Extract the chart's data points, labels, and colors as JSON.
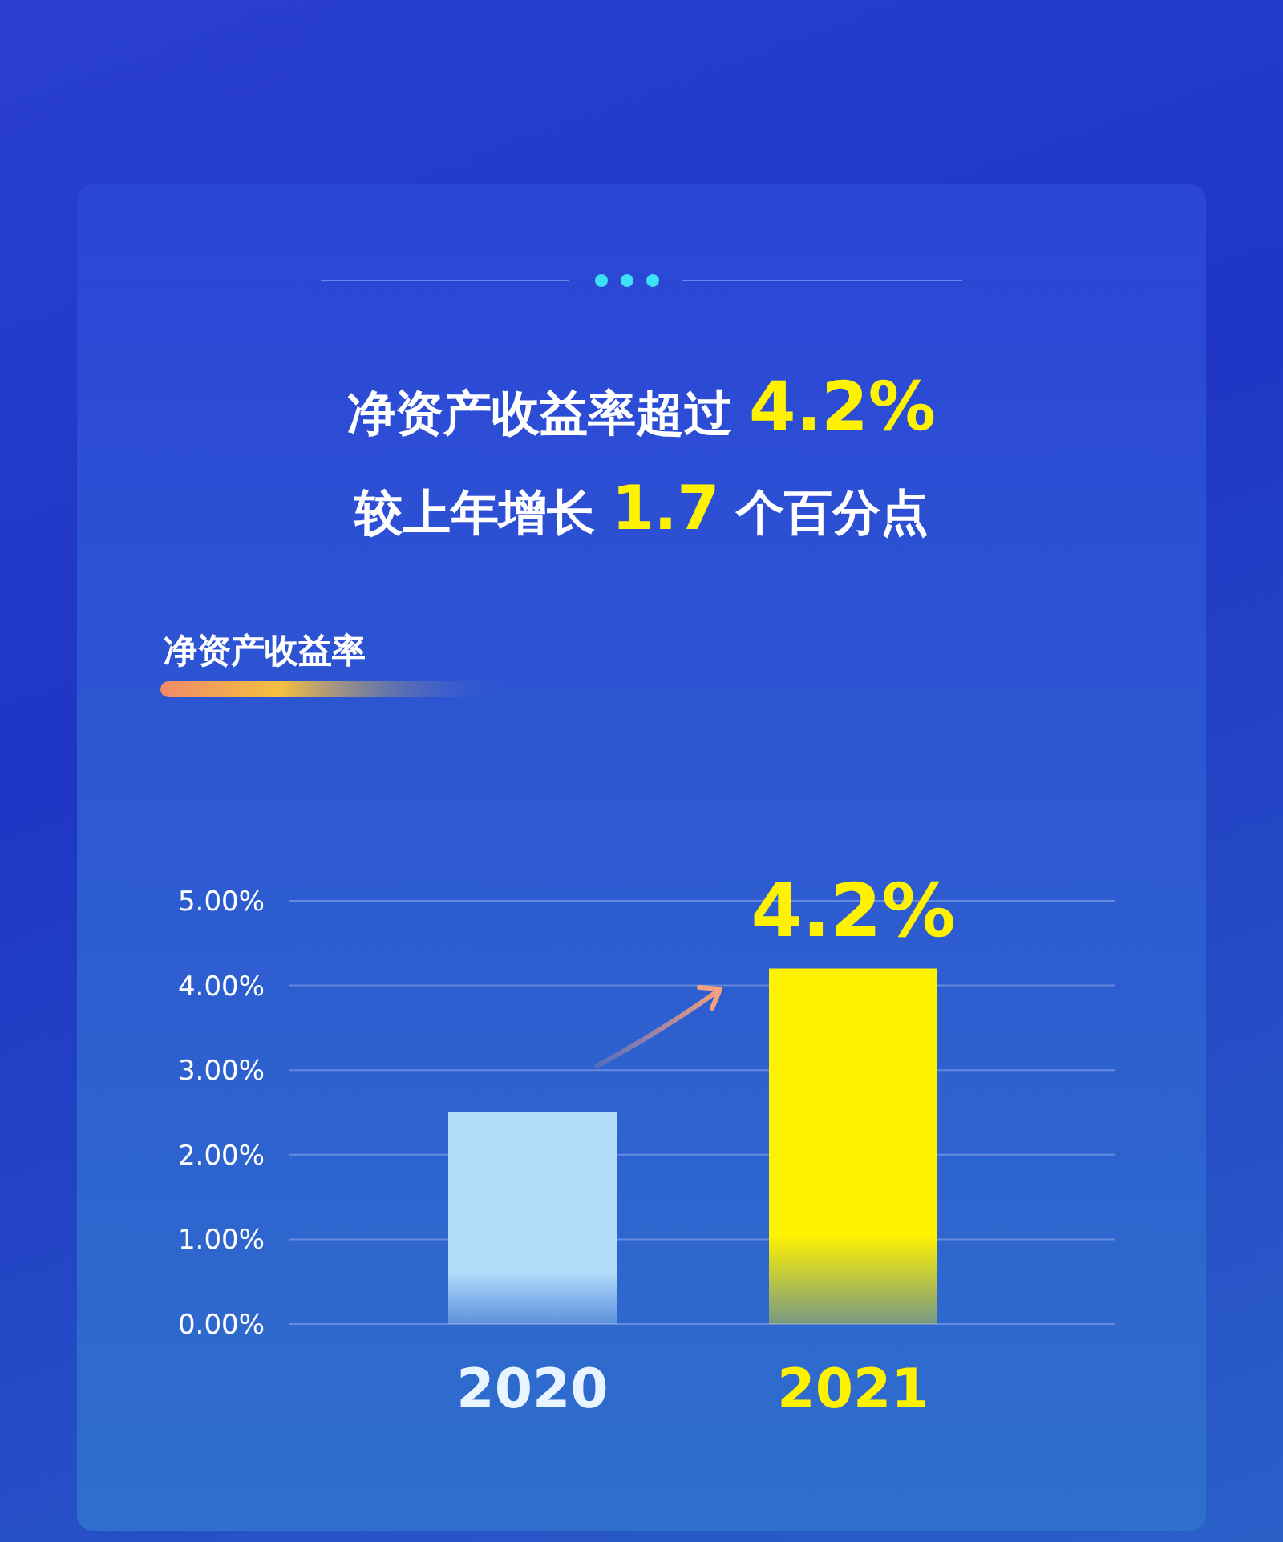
{
  "chart_data": {
    "type": "bar",
    "title": "净资产收益率超过 **4.2%**",
    "subtitle": "较上年增长 **1.7** 个百分点",
    "annotations": [
      "净资产收益率"
    ],
    "categories": [
      "2020",
      "2021"
    ],
    "values": [
      2.5,
      4.2
    ],
    "colors": [
      "#b3dcfa",
      "#fff200"
    ],
    "value_labels": [
      null,
      "4.2%"
    ],
    "ylim": [
      0,
      5
    ],
    "yticks": [
      {
        "value": 0,
        "label": "0.00%"
      },
      {
        "value": 1,
        "label": "1.00%"
      },
      {
        "value": 2,
        "label": "2.00%"
      },
      {
        "value": 3,
        "label": "3.00%"
      },
      {
        "value": 4,
        "label": "4.00%"
      },
      {
        "value": 5,
        "label": "5.00%"
      }
    ],
    "grid": "y"
  }
}
